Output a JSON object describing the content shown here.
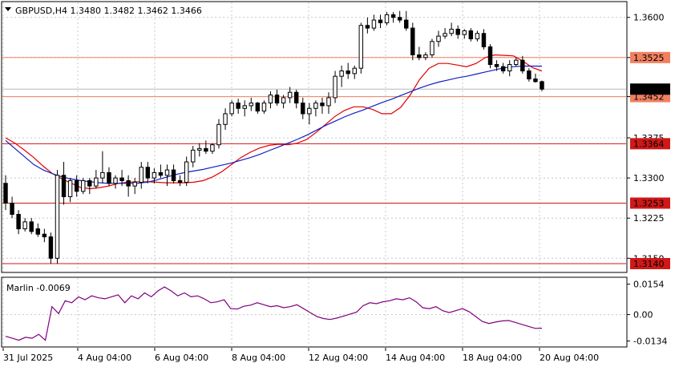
{
  "window": {
    "title": "GBPUSD,H4  1.3480 1.3482 1.3462 1.3466",
    "menu_icon": "triangle-down-icon"
  },
  "colors": {
    "background": "#ffffff",
    "panel_bg": "#ebebeb",
    "grid": "#c8c8c8",
    "bull_candle": "#ffffff",
    "bear_candle": "#000000",
    "ma_fast": "#e00000",
    "ma_slow": "#1020c0",
    "level_red": "#d01818",
    "level_orange": "#f08060",
    "oscillator": "#800080",
    "price_label_gray": "#808080"
  },
  "chart_data": [
    {
      "type": "candlestick",
      "symbol": "GBPUSD",
      "timeframe": "H4",
      "ohlc_header": {
        "open": 1.348,
        "high": 1.3482,
        "low": 1.3462,
        "close": 1.3466
      },
      "ylim": [
        1.3125,
        1.3628
      ],
      "y_ticks": [
        1.36,
        1.3525,
        1.3452,
        1.3375,
        1.33,
        1.3225,
        1.315
      ],
      "x_ticks": [
        "31 Jul 2025",
        "4 Aug 04:00",
        "6 Aug 04:00",
        "8 Aug 04:00",
        "12 Aug 04:00",
        "14 Aug 04:00",
        "18 Aug 04:00",
        "20 Aug 04:00"
      ],
      "current_price": 1.3466,
      "horizontal_levels": [
        {
          "value": 1.3525,
          "label": "1.3525",
          "color": "orange"
        },
        {
          "value": 1.3452,
          "label": "1.3452",
          "color": "orange"
        },
        {
          "value": 1.3364,
          "label": "1.3364",
          "color": "red"
        },
        {
          "value": 1.3253,
          "label": "1.3253",
          "color": "red"
        },
        {
          "value": 1.314,
          "label": "1.3140",
          "color": "red"
        }
      ],
      "candles": [
        [
          1.329,
          1.3305,
          1.324,
          1.3253
        ],
        [
          1.3253,
          1.3265,
          1.3225,
          1.3232
        ],
        [
          1.3232,
          1.324,
          1.3195,
          1.3205
        ],
        [
          1.3205,
          1.3225,
          1.32,
          1.3218
        ],
        [
          1.3218,
          1.3225,
          1.3195,
          1.32
        ],
        [
          1.3205,
          1.3215,
          1.319,
          1.3195
        ],
        [
          1.3195,
          1.3205,
          1.318,
          1.319
        ],
        [
          1.319,
          1.3198,
          1.314,
          1.315
        ],
        [
          1.315,
          1.3315,
          1.314,
          1.3305
        ],
        [
          1.3305,
          1.333,
          1.325,
          1.3265
        ],
        [
          1.3265,
          1.33,
          1.3255,
          1.3295
        ],
        [
          1.3295,
          1.3305,
          1.3265,
          1.3275
        ],
        [
          1.3275,
          1.33,
          1.327,
          1.3295
        ],
        [
          1.3295,
          1.33,
          1.327,
          1.3285
        ],
        [
          1.3285,
          1.3315,
          1.328,
          1.33
        ],
        [
          1.33,
          1.335,
          1.329,
          1.331
        ],
        [
          1.331,
          1.332,
          1.3285,
          1.329
        ],
        [
          1.329,
          1.3305,
          1.328,
          1.33
        ],
        [
          1.33,
          1.3315,
          1.3285,
          1.3295
        ],
        [
          1.3295,
          1.3305,
          1.3265,
          1.3285
        ],
        [
          1.3285,
          1.33,
          1.327,
          1.3292
        ],
        [
          1.3292,
          1.333,
          1.328,
          1.332
        ],
        [
          1.332,
          1.333,
          1.329,
          1.33
        ],
        [
          1.33,
          1.3318,
          1.329,
          1.331
        ],
        [
          1.331,
          1.3325,
          1.33,
          1.3305
        ],
        [
          1.3305,
          1.3325,
          1.3285,
          1.3315
        ],
        [
          1.3315,
          1.3325,
          1.329,
          1.3295
        ],
        [
          1.3295,
          1.3305,
          1.3285,
          1.3292
        ],
        [
          1.3292,
          1.334,
          1.3285,
          1.333
        ],
        [
          1.333,
          1.336,
          1.332,
          1.3352
        ],
        [
          1.3352,
          1.3365,
          1.334,
          1.3355
        ],
        [
          1.3355,
          1.337,
          1.3345,
          1.335
        ],
        [
          1.335,
          1.3365,
          1.3345,
          1.3362
        ],
        [
          1.3362,
          1.341,
          1.3355,
          1.34
        ],
        [
          1.34,
          1.343,
          1.339,
          1.342
        ],
        [
          1.342,
          1.3445,
          1.3415,
          1.344
        ],
        [
          1.344,
          1.3448,
          1.342,
          1.343
        ],
        [
          1.343,
          1.3445,
          1.3415,
          1.3435
        ],
        [
          1.3435,
          1.345,
          1.3425,
          1.344
        ],
        [
          1.344,
          1.3442,
          1.342,
          1.3425
        ],
        [
          1.3425,
          1.3445,
          1.342,
          1.344
        ],
        [
          1.344,
          1.3462,
          1.343,
          1.3455
        ],
        [
          1.3455,
          1.3465,
          1.3435,
          1.344
        ],
        [
          1.344,
          1.3455,
          1.343,
          1.345
        ],
        [
          1.345,
          1.347,
          1.344,
          1.346
        ],
        [
          1.346,
          1.3465,
          1.343,
          1.344
        ],
        [
          1.344,
          1.345,
          1.341,
          1.342
        ],
        [
          1.342,
          1.344,
          1.34,
          1.343
        ],
        [
          1.343,
          1.3445,
          1.3415,
          1.344
        ],
        [
          1.344,
          1.345,
          1.342,
          1.3435
        ],
        [
          1.3435,
          1.346,
          1.342,
          1.345
        ],
        [
          1.345,
          1.35,
          1.344,
          1.349
        ],
        [
          1.349,
          1.351,
          1.347,
          1.35
        ],
        [
          1.35,
          1.3515,
          1.3485,
          1.3495
        ],
        [
          1.3495,
          1.351,
          1.3485,
          1.3505
        ],
        [
          1.3505,
          1.359,
          1.3495,
          1.3585
        ],
        [
          1.3585,
          1.36,
          1.357,
          1.358
        ],
        [
          1.358,
          1.3605,
          1.3575,
          1.3595
        ],
        [
          1.3595,
          1.3605,
          1.358,
          1.359
        ],
        [
          1.359,
          1.361,
          1.3585,
          1.3605
        ],
        [
          1.3605,
          1.361,
          1.359,
          1.36
        ],
        [
          1.36,
          1.3612,
          1.359,
          1.3595
        ],
        [
          1.3595,
          1.3612,
          1.3575,
          1.358
        ],
        [
          1.358,
          1.359,
          1.352,
          1.353
        ],
        [
          1.353,
          1.3545,
          1.352,
          1.3525
        ],
        [
          1.3525,
          1.3535,
          1.352,
          1.353
        ],
        [
          1.353,
          1.356,
          1.3525,
          1.3555
        ],
        [
          1.3555,
          1.3575,
          1.3545,
          1.3565
        ],
        [
          1.3565,
          1.358,
          1.356,
          1.357
        ],
        [
          1.357,
          1.359,
          1.3565,
          1.3578
        ],
        [
          1.3578,
          1.3585,
          1.356,
          1.3568
        ],
        [
          1.3568,
          1.3578,
          1.356,
          1.3575
        ],
        [
          1.3575,
          1.358,
          1.3555,
          1.356
        ],
        [
          1.356,
          1.3575,
          1.3555,
          1.357
        ],
        [
          1.357,
          1.3578,
          1.354,
          1.3545
        ],
        [
          1.3545,
          1.355,
          1.3505,
          1.3512
        ],
        [
          1.3512,
          1.352,
          1.35,
          1.3508
        ],
        [
          1.3508,
          1.3515,
          1.3495,
          1.35
        ],
        [
          1.35,
          1.352,
          1.349,
          1.3512
        ],
        [
          1.3512,
          1.3525,
          1.3508,
          1.352
        ],
        [
          1.352,
          1.3528,
          1.3495,
          1.35
        ],
        [
          1.35,
          1.3505,
          1.348,
          1.3485
        ],
        [
          1.3485,
          1.3495,
          1.3478,
          1.348
        ],
        [
          1.348,
          1.3482,
          1.3462,
          1.3466
        ]
      ],
      "ma_fast": [
        1.3375,
        1.3365,
        1.3352,
        1.3338,
        1.3322,
        1.3308,
        1.3298,
        1.329,
        1.3282,
        1.328,
        1.3282,
        1.3285,
        1.329,
        1.3292,
        1.3293,
        1.3293,
        1.3292,
        1.3291,
        1.3291,
        1.3291,
        1.3292,
        1.3295,
        1.3302,
        1.3312,
        1.3325,
        1.3338,
        1.3348,
        1.3356,
        1.3361,
        1.3363,
        1.3362,
        1.3365,
        1.3372,
        1.3385,
        1.34,
        1.3415,
        1.3426,
        1.3433,
        1.3433,
        1.3428,
        1.342,
        1.342,
        1.3432,
        1.3455,
        1.3484,
        1.3505,
        1.3514,
        1.3514,
        1.3511,
        1.3508,
        1.3514,
        1.3525,
        1.353,
        1.3529,
        1.3528,
        1.3518,
        1.3506,
        1.35
      ],
      "ma_slow": [
        1.337,
        1.3355,
        1.334,
        1.3325,
        1.3315,
        1.3308,
        1.3302,
        1.3298,
        1.3295,
        1.3293,
        1.3291,
        1.329,
        1.329,
        1.329,
        1.329,
        1.3292,
        1.3296,
        1.3301,
        1.3306,
        1.331,
        1.3313,
        1.3316,
        1.332,
        1.3324,
        1.3328,
        1.3333,
        1.3338,
        1.3344,
        1.3351,
        1.3358,
        1.3365,
        1.3372,
        1.338,
        1.3389,
        1.3398,
        1.3406,
        1.3414,
        1.3421,
        1.3427,
        1.3434,
        1.3441,
        1.3447,
        1.3454,
        1.3461,
        1.3468,
        1.3474,
        1.3479,
        1.3483,
        1.3487,
        1.349,
        1.3494,
        1.3498,
        1.3502,
        1.3506,
        1.3508,
        1.3509,
        1.3509,
        1.3509
      ]
    },
    {
      "type": "line",
      "title": "Marlin -0.0069",
      "ylim": [
        -0.016,
        0.0185
      ],
      "y_ticks": [
        0.0154,
        0.0,
        -0.0134
      ],
      "values": [
        -0.011,
        -0.012,
        -0.013,
        -0.0115,
        -0.012,
        -0.01,
        -0.013,
        0.004,
        0.0005,
        0.007,
        0.006,
        0.009,
        0.0075,
        0.0095,
        0.0085,
        0.008,
        0.009,
        0.01,
        0.006,
        0.0095,
        0.008,
        0.011,
        0.009,
        0.012,
        0.014,
        0.012,
        0.0095,
        0.011,
        0.009,
        0.0095,
        0.008,
        0.006,
        0.0065,
        0.0075,
        0.003,
        0.0028,
        0.0042,
        0.0048,
        0.006,
        0.005,
        0.004,
        0.0045,
        0.0035,
        0.004,
        0.005,
        0.003,
        0.001,
        -0.001,
        -0.002,
        -0.0025,
        -0.0018,
        -0.0008,
        0.0002,
        0.0012,
        0.0045,
        0.006,
        0.0055,
        0.0065,
        0.007,
        0.008,
        0.0075,
        0.0085,
        0.0065,
        0.0035,
        0.003,
        0.004,
        0.002,
        0.001,
        0.002,
        0.003,
        0.0015,
        -0.001,
        -0.0035,
        -0.0045,
        -0.0038,
        -0.0032,
        -0.003,
        -0.004,
        -0.005,
        -0.006,
        -0.007,
        -0.0069
      ],
      "current_label": "-0.0069"
    }
  ]
}
